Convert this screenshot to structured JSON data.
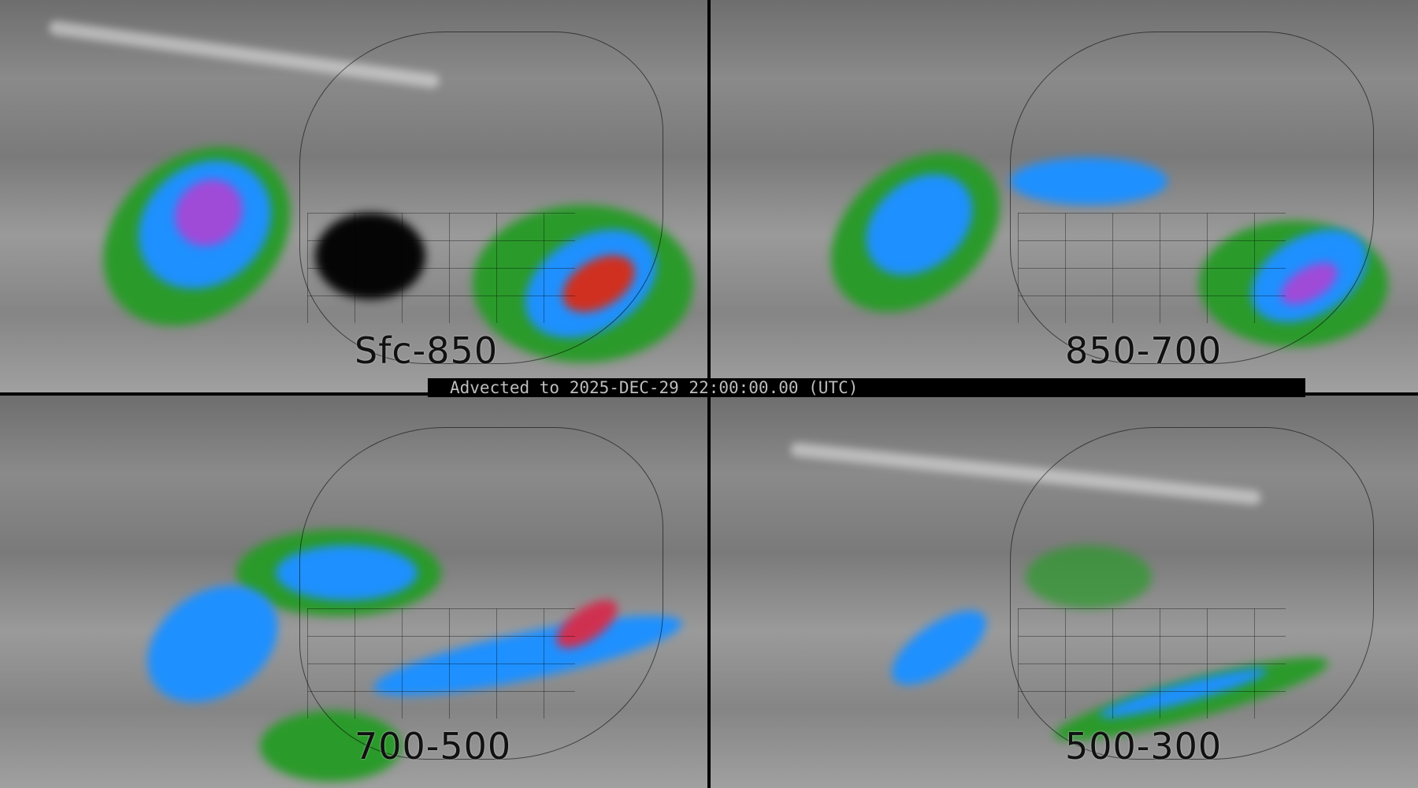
{
  "panels": [
    {
      "label": "Sfc-850"
    },
    {
      "label": "850-700"
    },
    {
      "label": "700-500"
    },
    {
      "label": "500-300"
    }
  ],
  "timestamp_bar": {
    "text": "Advected to 2025-DEC-29 22:00:00.00 (UTC)"
  },
  "colors": {
    "low": "#1a8f1a",
    "mid": "#1e9bff",
    "high": "#a04ad8",
    "peak": "#d02020",
    "background": "#808080",
    "divider": "#000000"
  }
}
